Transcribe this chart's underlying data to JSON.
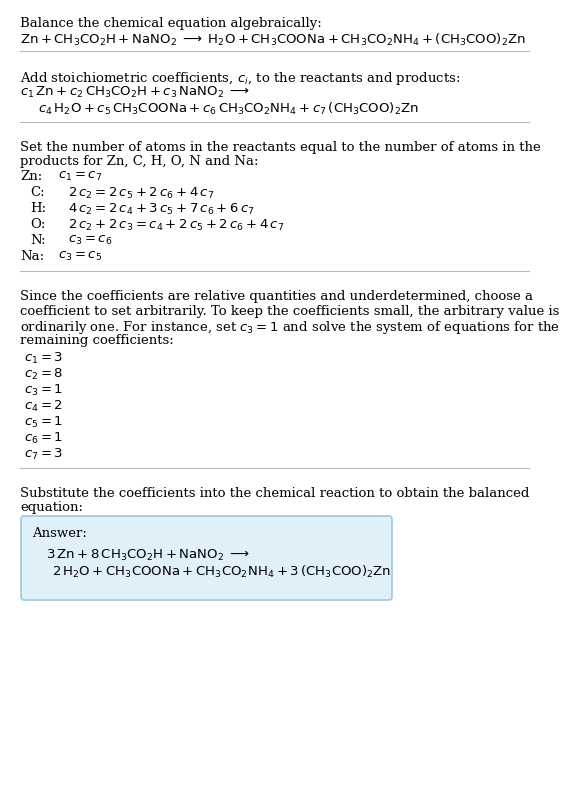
{
  "bg_color": "#ffffff",
  "text_color": "#000000",
  "title1": "Balance the chemical equation algebraically:",
  "eq1": "$\\mathrm{Zn + CH_3CO_2H + NaNO_2 \\;\\longrightarrow\\; H_2O + CH_3COONa + CH_3CO_2NH_4 + (CH_3COO)_2Zn}$",
  "title2": "Add stoichiometric coefficients, $c_i$, to the reactants and products:",
  "eq2a": "$c_1\\,\\mathrm{Zn} + c_2\\,\\mathrm{CH_3CO_2H} + c_3\\,\\mathrm{NaNO_2} \\;\\longrightarrow$",
  "eq2b": "$c_4\\,\\mathrm{H_2O} + c_5\\,\\mathrm{CH_3COONa} + c_6\\,\\mathrm{CH_3CO_2NH_4} + c_7\\,\\mathrm{(CH_3COO)_2Zn}$",
  "title3a": "Set the number of atoms in the reactants equal to the number of atoms in the",
  "title3b": "products for Zn, C, H, O, N and Na:",
  "atoms": [
    [
      "Zn:",
      "$c_1 = c_7$"
    ],
    [
      "C:",
      "$2\\,c_2 = 2\\,c_5 + 2\\,c_6 + 4\\,c_7$"
    ],
    [
      "H:",
      "$4\\,c_2 = 2\\,c_4 + 3\\,c_5 + 7\\,c_6 + 6\\,c_7$"
    ],
    [
      "O:",
      "$2\\,c_2 + 2\\,c_3 = c_4 + 2\\,c_5 + 2\\,c_6 + 4\\,c_7$"
    ],
    [
      "N:",
      "$c_3 = c_6$"
    ],
    [
      "Na:",
      "$c_3 = c_5$"
    ]
  ],
  "title4a": "Since the coefficients are relative quantities and underdetermined, choose a",
  "title4b": "coefficient to set arbitrarily. To keep the coefficients small, the arbitrary value is",
  "title4c": "ordinarily one. For instance, set $c_3 = 1$ and solve the system of equations for the",
  "title4d": "remaining coefficients:",
  "coeffs": [
    "$c_1 = 3$",
    "$c_2 = 8$",
    "$c_3 = 1$",
    "$c_4 = 2$",
    "$c_5 = 1$",
    "$c_6 = 1$",
    "$c_7 = 3$"
  ],
  "title5a": "Substitute the coefficients into the chemical reaction to obtain the balanced",
  "title5b": "equation:",
  "answer_label": "Answer:",
  "answer_eq1": "$3\\,\\mathrm{Zn} + 8\\,\\mathrm{CH_3CO_2H} + \\mathrm{NaNO_2} \\;\\longrightarrow$",
  "answer_eq2": "$2\\,\\mathrm{H_2O} + \\mathrm{CH_3COONa} + \\mathrm{CH_3CO_2NH_4} + 3\\,\\mathrm{(CH_3COO)_2Zn}$",
  "answer_box_color": "#dff0f8",
  "answer_box_edge": "#a0c8e0",
  "line_color": "#bbbbbb",
  "fs": 9.5,
  "fs_eq": 9.5
}
